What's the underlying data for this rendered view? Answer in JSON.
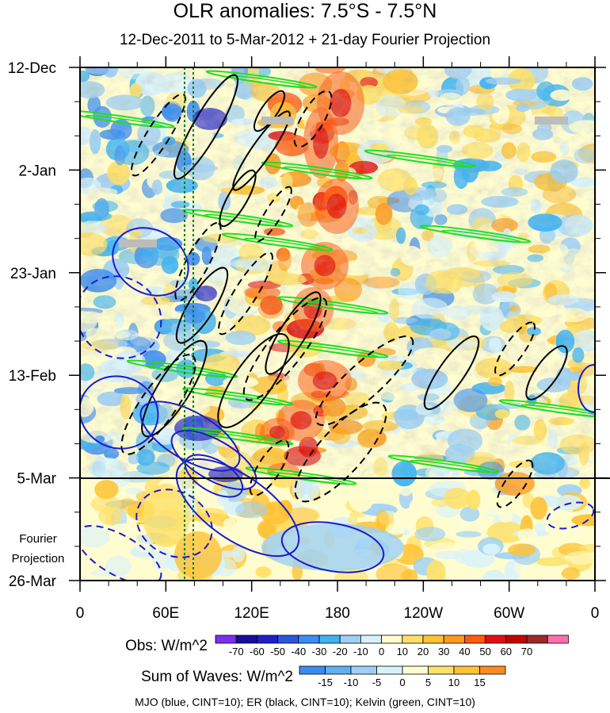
{
  "title": "OLR anomalies: 7.5°S - 7.5°N",
  "subtitle": "12-Dec-2011 to 5-Mar-2012 + 21-day Fourier Projection",
  "chart_data": {
    "type": "heatmap",
    "xaxis": {
      "ticks": [
        "0",
        "60E",
        "120E",
        "180",
        "120W",
        "60W",
        "0"
      ],
      "lon_range": [
        0,
        360
      ]
    },
    "yaxis": {
      "ticks": [
        "12-Dec",
        "2-Jan",
        "23-Jan",
        "13-Feb",
        "5-Mar",
        "26-Mar"
      ],
      "direction": "time increases downward"
    },
    "projection_label_line1": "Fourier",
    "projection_label_line2": "Projection",
    "obs_colorbar": {
      "title": "Obs: W/m^2",
      "labels": [
        "-70",
        "-60",
        "-50",
        "-40",
        "-30",
        "-20",
        "-10",
        "0",
        "10",
        "20",
        "30",
        "40",
        "50",
        "60",
        "70"
      ],
      "colors": [
        "#7b2ff0",
        "#1a0a9e",
        "#1f1fc8",
        "#2c55e0",
        "#3a8ef2",
        "#3fb4f2",
        "#9ed0f5",
        "#d8f2fb",
        "#fffdd0",
        "#ffe066",
        "#ffc233",
        "#ff9a1f",
        "#ff5a10",
        "#e01010",
        "#c80000",
        "#9a2a2a",
        "#ff6fb0"
      ]
    },
    "waves_colorbar": {
      "title": "Sum of Waves: W/m^2",
      "labels": [
        "-15",
        "-10",
        "-5",
        "0",
        "5",
        "10",
        "15"
      ],
      "colors": [
        "#3a8ef2",
        "#5fb0f3",
        "#9ed0f5",
        "#d8f2fb",
        "#fffdd0",
        "#ffe066",
        "#ffc233",
        "#ff8a1f"
      ]
    },
    "contour_legend": "MJO (blue, CINT=10); ER (black, CINT=10); Kelvin (green, CINT=10)",
    "series_colors": {
      "mjo": "#1a1ad0",
      "er": "#000000",
      "kelvin": "#22dd22"
    }
  }
}
